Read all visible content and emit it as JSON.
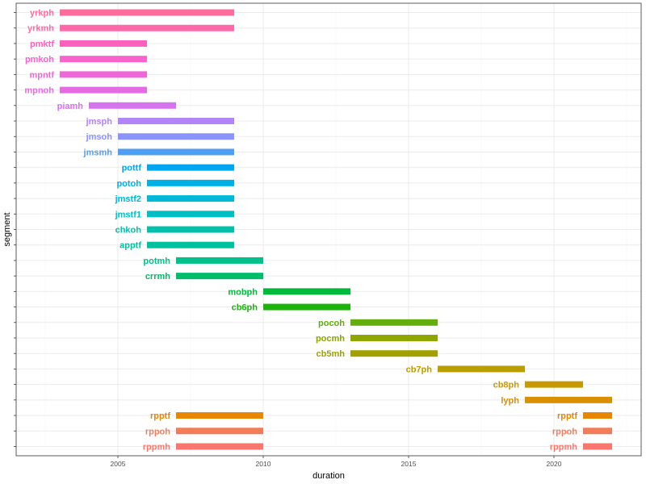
{
  "chart_data": {
    "type": "bar",
    "orientation": "horizontal-segments",
    "title": "",
    "xlabel": "duration",
    "ylabel": "segment",
    "xlim": [
      2001.5,
      2023.0
    ],
    "x_ticks": [
      2005,
      2010,
      2015,
      2020
    ],
    "grid": true,
    "segments": [
      {
        "label": "yrkph",
        "start": 2003,
        "end": 2009,
        "color": "#FF6C9C"
      },
      {
        "label": "yrkmh",
        "start": 2003,
        "end": 2009,
        "color": "#FF69A9"
      },
      {
        "label": "pmktf",
        "start": 2003,
        "end": 2006,
        "color": "#FD61BE"
      },
      {
        "label": "pmkoh",
        "start": 2003,
        "end": 2006,
        "color": "#F863CC"
      },
      {
        "label": "mpntf",
        "start": 2003,
        "end": 2006,
        "color": "#EE67D8"
      },
      {
        "label": "mpnoh",
        "start": 2003,
        "end": 2006,
        "color": "#E46BE2"
      },
      {
        "label": "piamh",
        "start": 2004,
        "end": 2007,
        "color": "#D574EE"
      },
      {
        "label": "jmsph",
        "start": 2005,
        "end": 2009,
        "color": "#B284F8"
      },
      {
        "label": "jmsoh",
        "start": 2005,
        "end": 2009,
        "color": "#8B93FF"
      },
      {
        "label": "jmsmh",
        "start": 2005,
        "end": 2009,
        "color": "#4E9EF2"
      },
      {
        "label": "pottf",
        "start": 2006,
        "end": 2009,
        "color": "#00A6EE"
      },
      {
        "label": "potoh",
        "start": 2006,
        "end": 2009,
        "color": "#00B1E6"
      },
      {
        "label": "jmstf2",
        "start": 2006,
        "end": 2009,
        "color": "#00B8D8"
      },
      {
        "label": "jmstf1",
        "start": 2006,
        "end": 2009,
        "color": "#00BEC4"
      },
      {
        "label": "chkoh",
        "start": 2006,
        "end": 2009,
        "color": "#00C0AE"
      },
      {
        "label": "apptf",
        "start": 2006,
        "end": 2009,
        "color": "#00C19F"
      },
      {
        "label": "potmh",
        "start": 2007,
        "end": 2010,
        "color": "#00C08B"
      },
      {
        "label": "crrmh",
        "start": 2007,
        "end": 2010,
        "color": "#00BD6C"
      },
      {
        "label": "mobph",
        "start": 2010,
        "end": 2013,
        "color": "#00B93A"
      },
      {
        "label": "cb6ph",
        "start": 2010,
        "end": 2013,
        "color": "#1DB30B"
      },
      {
        "label": "pocoh",
        "start": 2013,
        "end": 2016,
        "color": "#62AE0D"
      },
      {
        "label": "pocmh",
        "start": 2013,
        "end": 2016,
        "color": "#8FA500"
      },
      {
        "label": "cb5mh",
        "start": 2013,
        "end": 2016,
        "color": "#A1A200"
      },
      {
        "label": "cb7ph",
        "start": 2016,
        "end": 2019,
        "color": "#B89E00"
      },
      {
        "label": "cb8ph",
        "start": 2019,
        "end": 2021,
        "color": "#C69A00"
      },
      {
        "label": "lyph",
        "start": 2019,
        "end": 2022,
        "color": "#D89000"
      },
      {
        "label": "rpptf",
        "start": 2007,
        "end": 2010,
        "color": "#E58700"
      },
      {
        "label": "rppoh",
        "start": 2007,
        "end": 2010,
        "color": "#F07C5A"
      },
      {
        "label": "rppmh",
        "start": 2007,
        "end": 2010,
        "color": "#F8766D"
      },
      {
        "label": "rpptf",
        "start": 2021,
        "end": 2022,
        "color": "#E58700"
      },
      {
        "label": "rppoh",
        "start": 2021,
        "end": 2022,
        "color": "#F07C5A"
      },
      {
        "label": "rppmh",
        "start": 2021,
        "end": 2022,
        "color": "#F8766D"
      }
    ],
    "row_order": [
      "yrkph",
      "yrkmh",
      "pmktf",
      "pmkoh",
      "mpntf",
      "mpnoh",
      "piamh",
      "jmsph",
      "jmsoh",
      "jmsmh",
      "pottf",
      "potoh",
      "jmstf2",
      "jmstf1",
      "chkoh",
      "apptf",
      "potmh",
      "crrmh",
      "mobph",
      "cb6ph",
      "pocoh",
      "pocmh",
      "cb5mh",
      "cb7ph",
      "cb8ph",
      "lyph",
      "rpptf",
      "rppoh",
      "rppmh"
    ]
  }
}
